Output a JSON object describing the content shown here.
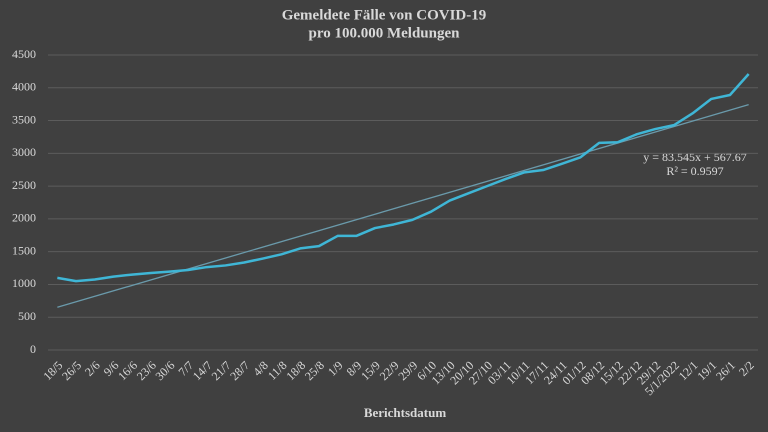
{
  "chart_data": {
    "type": "line",
    "title": "Gemeldete Fälle von COVID-19",
    "subtitle": "pro 100.000 Meldungen",
    "x_label": "Berichtsdatum",
    "categories": [
      "18/5",
      "26/5",
      "2/6",
      "9/6",
      "16/6",
      "23/6",
      "30/6",
      "7/7",
      "14/7",
      "21/7",
      "28/7",
      "4/8",
      "11/8",
      "18/8",
      "25/8",
      "1/9",
      "8/9",
      "15/9",
      "22/9",
      "29/9",
      "6/10",
      "13/10",
      "20/10",
      "27/10",
      "03/11",
      "10/11",
      "17/11",
      "24/11",
      "01/12",
      "08/12",
      "15/12",
      "22/12",
      "29/12",
      "5/1/2022",
      "12/1",
      "19/1",
      "26/1",
      "2/2"
    ],
    "series": [
      {
        "color": "#3fb6d6",
        "values": [
          1100,
          1050,
          1075,
          1120,
          1150,
          1175,
          1195,
          1220,
          1265,
          1290,
          1335,
          1395,
          1460,
          1550,
          1585,
          1740,
          1740,
          1860,
          1915,
          1985,
          2110,
          2280,
          2390,
          2500,
          2610,
          2710,
          2745,
          2840,
          2940,
          3160,
          3170,
          3290,
          3370,
          3430,
          3610,
          3830,
          3890,
          4210
        ]
      }
    ],
    "trendline": {
      "color": "#6a9aab",
      "values": [
        651.2,
        3742.4
      ]
    },
    "annotations": [
      "y = 83.545x + 567.67",
      "R² = 0.9597"
    ],
    "ylim": [
      0,
      4500
    ],
    "yticks": [
      0,
      500,
      1000,
      1500,
      2000,
      2500,
      3000,
      3500,
      4000,
      4500
    ],
    "grid": true
  }
}
